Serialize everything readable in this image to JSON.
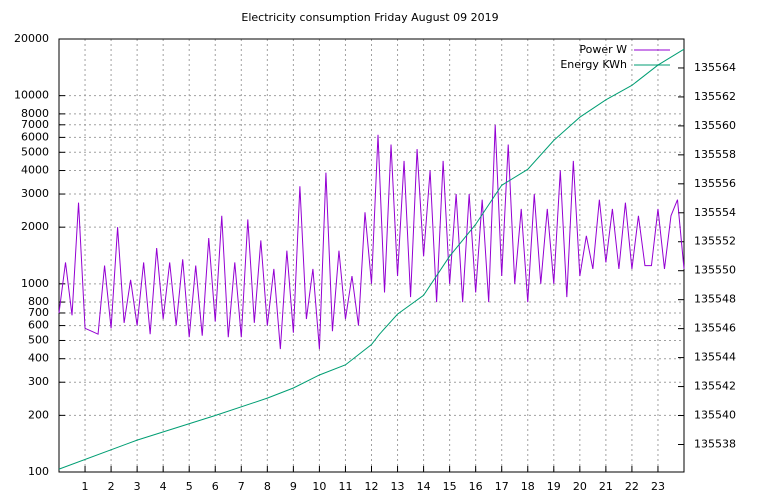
{
  "chart_data": {
    "type": "line",
    "title": "Electricity consumption Friday August 09 2019",
    "xlim": [
      0,
      24
    ],
    "xticks": [
      1,
      2,
      3,
      4,
      5,
      6,
      7,
      8,
      9,
      10,
      11,
      12,
      13,
      14,
      15,
      16,
      17,
      18,
      19,
      20,
      21,
      22,
      23
    ],
    "ylim": [
      100,
      20000
    ],
    "log_y": true,
    "yticks": [
      100,
      200,
      300,
      400,
      500,
      600,
      700,
      800,
      1000,
      2000,
      3000,
      4000,
      5000,
      6000,
      7000,
      8000,
      10000,
      20000
    ],
    "y2lim": [
      135536.1,
      135566
    ],
    "y2ticks": [
      135538,
      135540,
      135542,
      135544,
      135546,
      135548,
      135550,
      135552,
      135554,
      135556,
      135558,
      135560,
      135562,
      135564
    ],
    "grid": true,
    "legend": "top-right",
    "series": [
      {
        "name": "Power W",
        "color": "#9400d3",
        "x": [
          0,
          0.25,
          0.5,
          0.75,
          1,
          1.25,
          1.5,
          1.75,
          2,
          2.25,
          2.5,
          2.75,
          3,
          3.25,
          3.5,
          3.75,
          4,
          4.25,
          4.5,
          4.75,
          5,
          5.25,
          5.5,
          5.75,
          6,
          6.25,
          6.5,
          6.75,
          7,
          7.25,
          7.5,
          7.75,
          8,
          8.25,
          8.5,
          8.75,
          9,
          9.25,
          9.5,
          9.75,
          10,
          10.25,
          10.5,
          10.75,
          11,
          11.25,
          11.5,
          11.75,
          12,
          12.25,
          12.5,
          12.75,
          13,
          13.25,
          13.5,
          13.75,
          14,
          14.25,
          14.5,
          14.75,
          15,
          15.25,
          15.5,
          15.75,
          16,
          16.25,
          16.5,
          16.75,
          17,
          17.25,
          17.5,
          17.75,
          18,
          18.25,
          18.5,
          18.75,
          19,
          19.25,
          19.5,
          19.75,
          20,
          20.25,
          20.5,
          20.75,
          21,
          21.25,
          21.5,
          21.75,
          22,
          22.25,
          22.5,
          22.75,
          23,
          23.25,
          23.5,
          23.75,
          24
        ],
        "values": [
          700,
          1300,
          680,
          2700,
          580,
          560,
          540,
          1250,
          580,
          2000,
          620,
          1050,
          600,
          1300,
          540,
          1550,
          650,
          1300,
          600,
          1350,
          520,
          1250,
          530,
          1750,
          630,
          2300,
          520,
          1300,
          520,
          2200,
          620,
          1700,
          600,
          1200,
          450,
          1500,
          550,
          3300,
          650,
          1200,
          450,
          3900,
          560,
          1500,
          650,
          1100,
          600,
          2400,
          1000,
          6200,
          900,
          5500,
          1100,
          4500,
          850,
          5200,
          1400,
          4000,
          800,
          4500,
          1000,
          3000,
          800,
          3000,
          900,
          2800,
          800,
          7000,
          1100,
          5500,
          1000,
          2500,
          800,
          3000,
          1000,
          2500,
          1000,
          4000,
          850,
          4500,
          1100,
          1800,
          1200,
          2800,
          1300,
          2500,
          1200,
          2700,
          1200,
          2300,
          1250,
          1250,
          2500,
          1200,
          2300,
          2800,
          1200
        ]
      },
      {
        "name": "Energy KWh",
        "color": "#009e73",
        "axis": "y2",
        "x": [
          0,
          3,
          6,
          8,
          9,
          10,
          11,
          12,
          12.3,
          13,
          14,
          15,
          16,
          17,
          18,
          19,
          20,
          21,
          22,
          23,
          24
        ],
        "values": [
          135536.3,
          135538.3,
          135540,
          135541.2,
          135541.9,
          135542.8,
          135543.5,
          135544.9,
          135545.6,
          135547,
          135548.3,
          135551,
          135553.2,
          135555.9,
          135557,
          135559,
          135560.6,
          135561.8,
          135562.8,
          135564.2,
          135565.3
        ]
      }
    ]
  }
}
